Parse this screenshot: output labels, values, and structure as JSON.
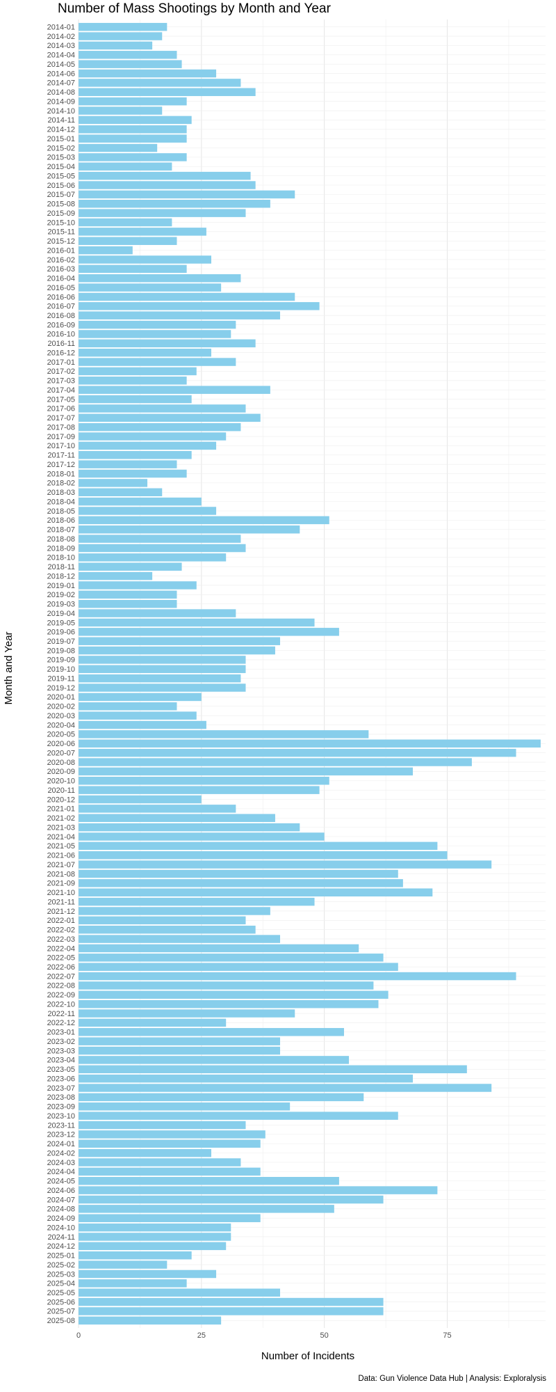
{
  "chart_data": {
    "type": "bar",
    "orientation": "horizontal",
    "title": "Number of Mass Shootings by Month and Year",
    "xlabel": "Number of Incidents",
    "ylabel": "Month and Year",
    "caption": "Data: Gun Violence Data Hub | Analysis: Exploralysis",
    "xlim": [
      0,
      95
    ],
    "xticks": [
      0,
      25,
      50,
      75
    ],
    "grid": true,
    "bar_color": "#87CEEB",
    "categories": [
      "2014-01",
      "2014-02",
      "2014-03",
      "2014-04",
      "2014-05",
      "2014-06",
      "2014-07",
      "2014-08",
      "2014-09",
      "2014-10",
      "2014-11",
      "2014-12",
      "2015-01",
      "2015-02",
      "2015-03",
      "2015-04",
      "2015-05",
      "2015-06",
      "2015-07",
      "2015-08",
      "2015-09",
      "2015-10",
      "2015-11",
      "2015-12",
      "2016-01",
      "2016-02",
      "2016-03",
      "2016-04",
      "2016-05",
      "2016-06",
      "2016-07",
      "2016-08",
      "2016-09",
      "2016-10",
      "2016-11",
      "2016-12",
      "2017-01",
      "2017-02",
      "2017-03",
      "2017-04",
      "2017-05",
      "2017-06",
      "2017-07",
      "2017-08",
      "2017-09",
      "2017-10",
      "2017-11",
      "2017-12",
      "2018-01",
      "2018-02",
      "2018-03",
      "2018-04",
      "2018-05",
      "2018-06",
      "2018-07",
      "2018-08",
      "2018-09",
      "2018-10",
      "2018-11",
      "2018-12",
      "2019-01",
      "2019-02",
      "2019-03",
      "2019-04",
      "2019-05",
      "2019-06",
      "2019-07",
      "2019-08",
      "2019-09",
      "2019-10",
      "2019-11",
      "2019-12",
      "2020-01",
      "2020-02",
      "2020-03",
      "2020-04",
      "2020-05",
      "2020-06",
      "2020-07",
      "2020-08",
      "2020-09",
      "2020-10",
      "2020-11",
      "2020-12",
      "2021-01",
      "2021-02",
      "2021-03",
      "2021-04",
      "2021-05",
      "2021-06",
      "2021-07",
      "2021-08",
      "2021-09",
      "2021-10",
      "2021-11",
      "2021-12",
      "2022-01",
      "2022-02",
      "2022-03",
      "2022-04",
      "2022-05",
      "2022-06",
      "2022-07",
      "2022-08",
      "2022-09",
      "2022-10",
      "2022-11",
      "2022-12",
      "2023-01",
      "2023-02",
      "2023-03",
      "2023-04",
      "2023-05",
      "2023-06",
      "2023-07",
      "2023-08",
      "2023-09",
      "2023-10",
      "2023-11",
      "2023-12",
      "2024-01",
      "2024-02",
      "2024-03",
      "2024-04",
      "2024-05",
      "2024-06",
      "2024-07",
      "2024-08",
      "2024-09",
      "2024-10",
      "2024-11",
      "2024-12",
      "2025-01",
      "2025-02",
      "2025-03",
      "2025-04",
      "2025-05",
      "2025-06",
      "2025-07",
      "2025-08"
    ],
    "values": [
      18,
      17,
      15,
      20,
      21,
      28,
      33,
      36,
      22,
      17,
      23,
      22,
      22,
      16,
      22,
      19,
      35,
      36,
      44,
      39,
      34,
      19,
      26,
      20,
      11,
      27,
      22,
      33,
      29,
      44,
      49,
      41,
      32,
      31,
      36,
      27,
      32,
      24,
      22,
      39,
      23,
      34,
      37,
      33,
      30,
      28,
      23,
      20,
      22,
      14,
      17,
      25,
      28,
      51,
      45,
      33,
      34,
      30,
      21,
      15,
      24,
      20,
      20,
      32,
      48,
      53,
      41,
      40,
      34,
      34,
      33,
      34,
      25,
      20,
      24,
      26,
      59,
      94,
      89,
      80,
      68,
      51,
      49,
      25,
      32,
      40,
      45,
      50,
      73,
      75,
      84,
      65,
      66,
      72,
      48,
      39,
      34,
      36,
      41,
      57,
      62,
      65,
      89,
      60,
      63,
      61,
      44,
      30,
      54,
      41,
      41,
      55,
      79,
      68,
      84,
      58,
      43,
      65,
      34,
      38,
      37,
      27,
      33,
      37,
      53,
      73,
      62,
      52,
      37,
      31,
      31,
      30,
      23,
      18,
      28,
      22,
      41,
      62,
      62,
      29
    ]
  }
}
